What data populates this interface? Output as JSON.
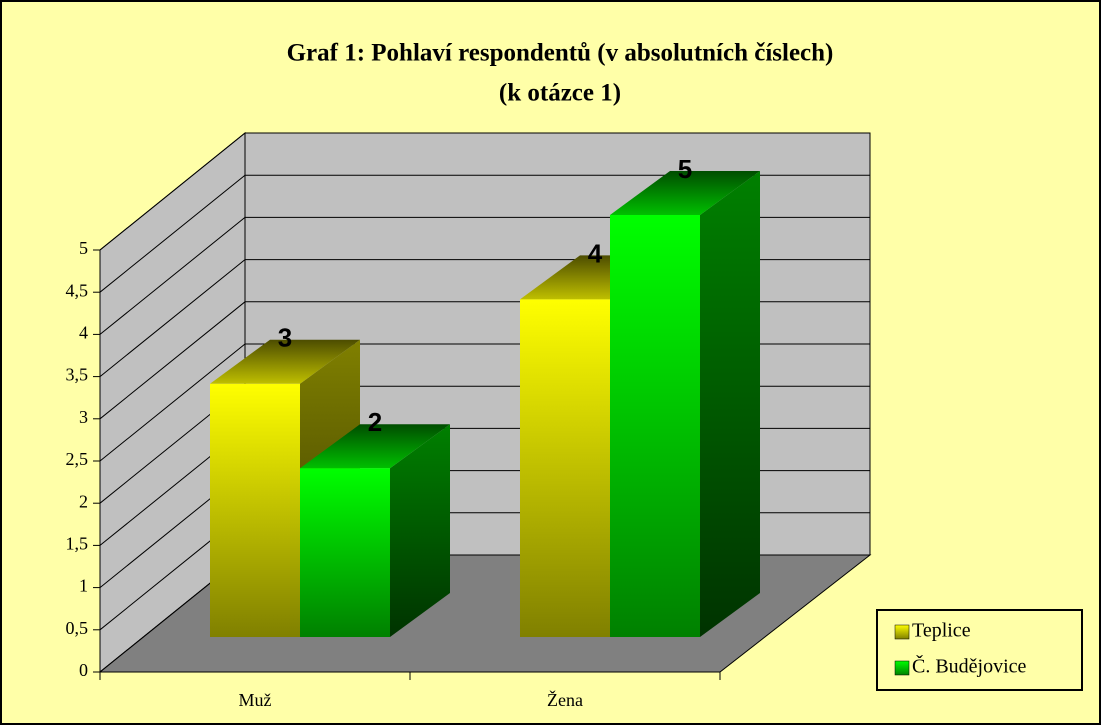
{
  "chart_data": {
    "type": "bar3d",
    "title": "Graf 1: Pohlaví respondentů (v absolutních číslech)",
    "subtitle": "(k otázce 1)",
    "categories": [
      "Muž",
      "Žena"
    ],
    "series": [
      {
        "name": "Teplice",
        "color": "#ffff00",
        "values": [
          3,
          4
        ]
      },
      {
        "name": "Č. Budějovice",
        "color": "#00ff00",
        "values": [
          2,
          5
        ]
      }
    ],
    "ylim": [
      0,
      5
    ],
    "yticks": [
      0,
      {
        "value": 0.5,
        "label": "0,5"
      },
      1,
      {
        "value": 1.5,
        "label": "1,5"
      },
      2,
      {
        "value": 2.5,
        "label": "2,5"
      },
      3,
      {
        "value": 3.5,
        "label": "3,5"
      },
      4,
      {
        "value": 4.5,
        "label": "4,5"
      },
      5
    ],
    "grid": true,
    "legend": "right"
  }
}
